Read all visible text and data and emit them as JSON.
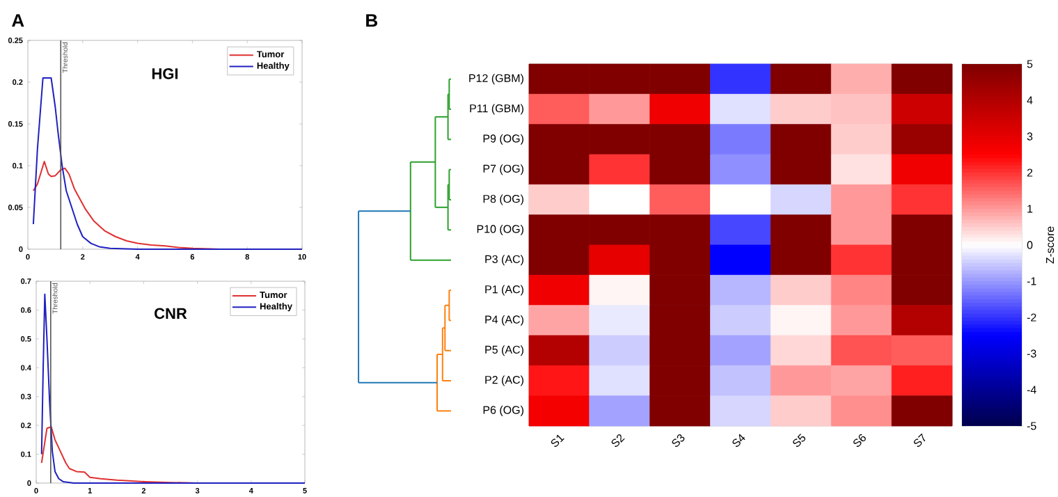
{
  "chart_data": [
    {
      "type": "line",
      "title": "HGI",
      "annotations": [
        "A"
      ],
      "xlim": [
        0,
        10
      ],
      "ylim": [
        0,
        0.25
      ],
      "xticks": [
        0,
        2,
        4,
        6,
        8,
        10
      ],
      "yticks": [
        0,
        0.05,
        0.1,
        0.15,
        0.2,
        0.25
      ],
      "legend": "top right",
      "ref_lines": [
        {
          "axis": "x",
          "value": 1.2,
          "label": "Threshold",
          "color": "#555555"
        }
      ],
      "series": [
        {
          "name": "Tumor",
          "color": "#e03030",
          "x": [
            0.2,
            0.35,
            0.6,
            0.75,
            0.85,
            1.0,
            1.2,
            1.35,
            1.5,
            1.7,
            1.9,
            2.1,
            2.4,
            2.8,
            3.2,
            3.6,
            4.0,
            4.5,
            5.0,
            5.5,
            6.0,
            7.0,
            8.0,
            10.0
          ],
          "values": [
            0.07,
            0.078,
            0.105,
            0.09,
            0.087,
            0.088,
            0.095,
            0.097,
            0.09,
            0.072,
            0.06,
            0.048,
            0.034,
            0.022,
            0.015,
            0.01,
            0.007,
            0.005,
            0.004,
            0.002,
            0.001,
            0,
            0,
            0
          ]
        },
        {
          "name": "Healthy",
          "color": "#2020c0",
          "x": [
            0.2,
            0.35,
            0.55,
            0.85,
            1.0,
            1.1,
            1.25,
            1.4,
            1.6,
            1.8,
            2.0,
            2.3,
            2.6,
            3.0,
            4.0,
            6.0,
            10.0
          ],
          "values": [
            0.03,
            0.12,
            0.205,
            0.205,
            0.17,
            0.14,
            0.1,
            0.07,
            0.05,
            0.03,
            0.015,
            0.007,
            0.003,
            0.001,
            0,
            0,
            0
          ]
        }
      ]
    },
    {
      "type": "line",
      "title": "CNR",
      "xlim": [
        0,
        5
      ],
      "ylim": [
        0,
        0.7
      ],
      "xticks": [
        0,
        1,
        2,
        3,
        4,
        5
      ],
      "yticks": [
        0,
        0.1,
        0.2,
        0.3,
        0.4,
        0.5,
        0.6,
        0.7
      ],
      "legend": "top right",
      "ref_lines": [
        {
          "axis": "x",
          "value": 0.27,
          "label": "Threshold",
          "color": "#555555"
        }
      ],
      "series": [
        {
          "name": "Tumor",
          "color": "#e03030",
          "x": [
            0.1,
            0.15,
            0.2,
            0.28,
            0.35,
            0.45,
            0.55,
            0.62,
            0.75,
            0.9,
            1.0,
            1.2,
            1.5,
            2.0,
            2.5,
            3.0,
            5.0
          ],
          "values": [
            0.07,
            0.13,
            0.19,
            0.195,
            0.15,
            0.11,
            0.07,
            0.05,
            0.04,
            0.038,
            0.02,
            0.015,
            0.01,
            0.005,
            0.002,
            0,
            0
          ]
        },
        {
          "name": "Healthy",
          "color": "#2020c0",
          "x": [
            0.1,
            0.13,
            0.16,
            0.2,
            0.25,
            0.3,
            0.35,
            0.42,
            0.5,
            0.7,
            1.0,
            5.0
          ],
          "values": [
            0.1,
            0.4,
            0.655,
            0.5,
            0.28,
            0.11,
            0.04,
            0.015,
            0.005,
            0,
            0,
            0
          ]
        }
      ]
    },
    {
      "type": "heatmap",
      "annotations": [
        "B"
      ],
      "clabel": "Z-score",
      "clim": [
        -5,
        5
      ],
      "cticks": [
        -5,
        -4,
        -3,
        -2,
        -1,
        0,
        1,
        2,
        3,
        4,
        5
      ],
      "categories": [
        "S1",
        "S2",
        "S3",
        "S4",
        "S5",
        "S6",
        "S7"
      ],
      "y_categories": [
        "P12 (GBM)",
        "P11 (GBM)",
        "P9 (OG)",
        "P7 (OG)",
        "P8 (OG)",
        "P10 (OG)",
        "P3 (AC)",
        "P1 (AC)",
        "P4 (AC)",
        "P5 (AC)",
        "P2 (AC)",
        "P6 (OG)"
      ],
      "cells": [
        [
          5,
          5,
          5,
          -2,
          5,
          0.8,
          5
        ],
        [
          1.6,
          1,
          2.8,
          -0.3,
          0.5,
          0.6,
          3.5
        ],
        [
          5,
          5,
          5,
          -1.3,
          5,
          0.5,
          4.5
        ],
        [
          5,
          2,
          5,
          -1.1,
          5,
          0.3,
          2.8
        ],
        [
          0.5,
          0,
          1.6,
          0,
          -0.4,
          1,
          2
        ],
        [
          5,
          5,
          5,
          -1.8,
          5,
          1,
          5
        ],
        [
          5,
          3,
          5,
          -2.5,
          5,
          2,
          5
        ],
        [
          2.8,
          0.1,
          5,
          -0.7,
          0.5,
          1.2,
          5
        ],
        [
          0.9,
          -0.2,
          5,
          -0.5,
          0.1,
          1,
          4
        ],
        [
          4,
          -0.5,
          5,
          -0.9,
          0.4,
          1.7,
          1.6
        ],
        [
          2.3,
          -0.3,
          5,
          -0.6,
          1,
          0.9,
          2.2
        ],
        [
          2.7,
          -0.9,
          5,
          -0.4,
          0.5,
          1.1,
          5
        ]
      ]
    }
  ]
}
